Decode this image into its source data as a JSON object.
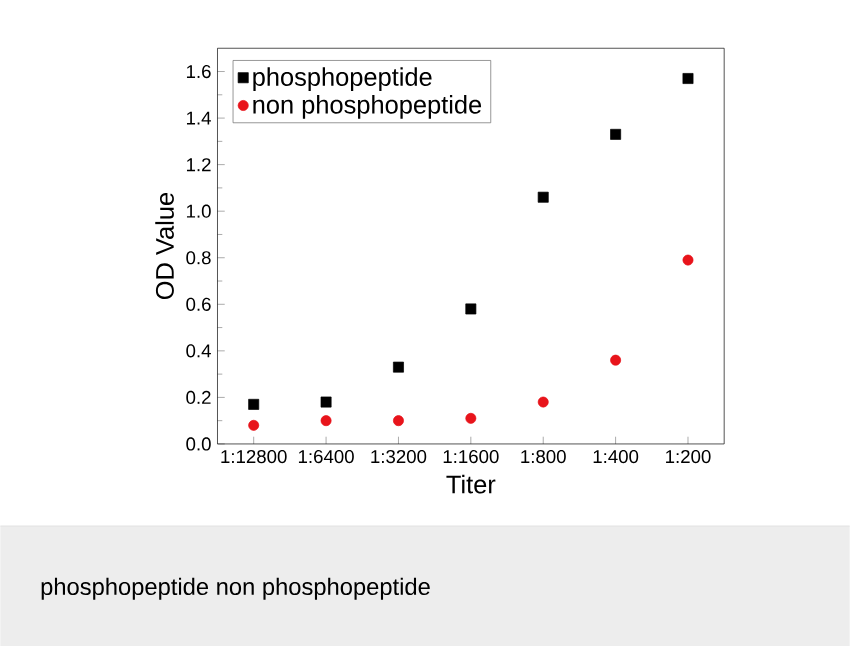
{
  "chart_data": {
    "type": "scatter",
    "xlabel": "Titer",
    "ylabel": "OD Value",
    "categories": [
      "1:12800",
      "1:6400",
      "1:3200",
      "1:1600",
      "1:800",
      "1:400",
      "1:200"
    ],
    "series": [
      {
        "name": "phosphopeptide",
        "color": "#000000",
        "marker": "square",
        "values": [
          0.17,
          0.18,
          0.33,
          0.58,
          1.06,
          1.33,
          1.57
        ]
      },
      {
        "name": "non phosphopeptide",
        "color": "#e8141b",
        "marker": "circle",
        "values": [
          0.08,
          0.1,
          0.1,
          0.11,
          0.18,
          0.36,
          0.79
        ]
      }
    ],
    "ylim": [
      0,
      1.7
    ],
    "yticks": [
      {
        "value": 0,
        "label": "0.0"
      },
      0.2,
      0.4,
      0.6,
      0.8,
      {
        "value": 1,
        "label": "1.0"
      },
      1.2,
      1.4,
      1.6
    ],
    "legend": "top left",
    "grid": false,
    "annotations": [
      "phosphopeptide non phosphopeptide"
    ]
  }
}
